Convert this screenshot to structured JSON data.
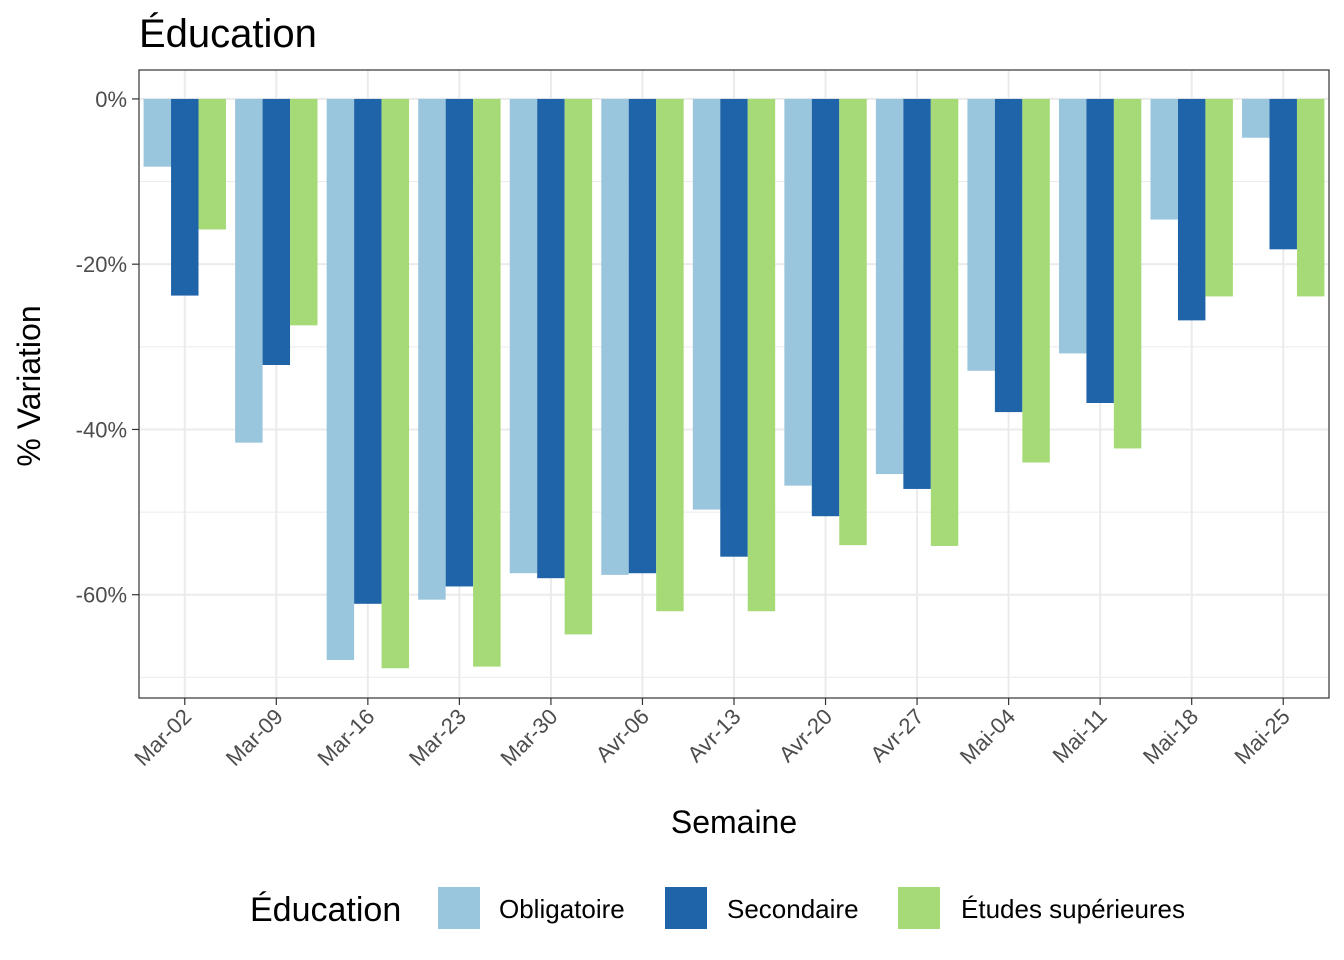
{
  "chart_data": {
    "type": "bar",
    "title": "Éducation",
    "xlabel": "Semaine",
    "ylabel": "% Variation",
    "categories": [
      "Mar-02",
      "Mar-09",
      "Mar-16",
      "Mar-23",
      "Mar-30",
      "Avr-06",
      "Avr-13",
      "Avr-20",
      "Avr-27",
      "Mai-04",
      "Mai-11",
      "Mai-18",
      "Mai-25"
    ],
    "series": [
      {
        "name": "Obligatoire",
        "color": "#9ac6dd",
        "values": [
          -8.2,
          -41.6,
          -67.9,
          -60.6,
          -57.4,
          -57.6,
          -49.7,
          -46.8,
          -45.4,
          -32.9,
          -30.8,
          -14.6,
          -4.7
        ]
      },
      {
        "name": "Secondaire",
        "color": "#1f64a8",
        "values": [
          -23.8,
          -32.2,
          -61.1,
          -59.0,
          -58.0,
          -57.4,
          -55.4,
          -50.5,
          -47.2,
          -37.9,
          -36.8,
          -26.8,
          -18.2
        ]
      },
      {
        "name": "Études supérieures",
        "color": "#a5da76",
        "values": [
          -15.8,
          -27.4,
          -68.9,
          -68.7,
          -64.8,
          -62.0,
          -62.0,
          -54.0,
          -54.1,
          -44.0,
          -42.3,
          -23.9,
          -23.9
        ]
      }
    ],
    "ylim": [
      -72.5,
      3.5
    ],
    "yticks": [
      0,
      -20,
      -40,
      -60
    ],
    "ytick_labels": [
      "0%",
      "-20%",
      "-40%",
      "-60%"
    ],
    "grid": true,
    "legend": {
      "title": "Éducation",
      "position": "bottom"
    }
  }
}
